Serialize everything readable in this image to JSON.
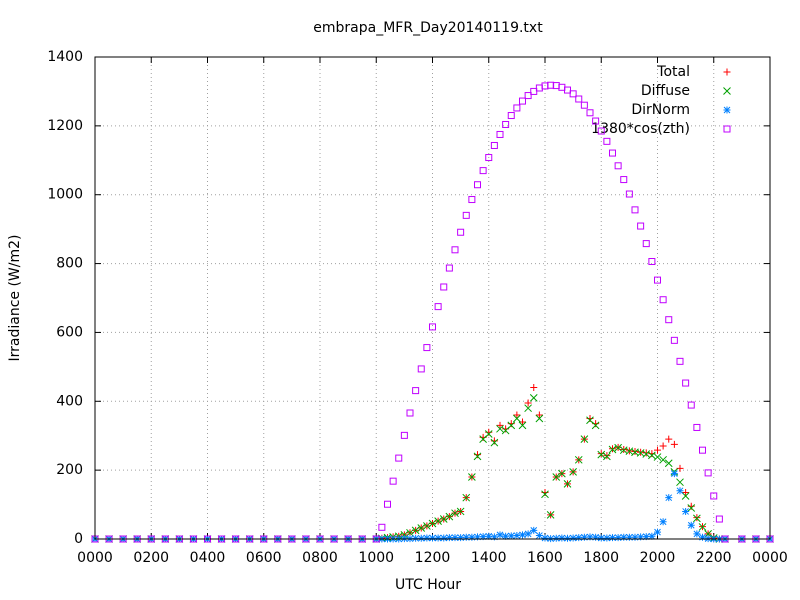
{
  "chart_data": {
    "type": "scatter",
    "title": "embrapa_MFR_Day20140119.txt",
    "x_label": "UTC Hour",
    "y_label": "Irradiance (W/m2)",
    "xlim": [
      0,
      24
    ],
    "ylim": [
      0,
      1400
    ],
    "xticks": [
      {
        "value": 0,
        "label": "0000"
      },
      {
        "value": 2,
        "label": "0200"
      },
      {
        "value": 4,
        "label": "0400"
      },
      {
        "value": 6,
        "label": "0600"
      },
      {
        "value": 8,
        "label": "0800"
      },
      {
        "value": 10,
        "label": "1000"
      },
      {
        "value": 12,
        "label": "1200"
      },
      {
        "value": 14,
        "label": "1400"
      },
      {
        "value": 16,
        "label": "1600"
      },
      {
        "value": 18,
        "label": "1800"
      },
      {
        "value": 20,
        "label": "2000"
      },
      {
        "value": 22,
        "label": "2200"
      },
      {
        "value": 24,
        "label": "0000"
      }
    ],
    "yticks": [
      0,
      200,
      400,
      600,
      800,
      1000,
      1200,
      1400
    ],
    "grid": true,
    "legend": "top right",
    "x": [
      0,
      0.5,
      1,
      1.5,
      2,
      2.5,
      3,
      3.5,
      4,
      4.5,
      5,
      5.5,
      6,
      6.5,
      7,
      7.5,
      8,
      8.5,
      9,
      9.5,
      10,
      10.2,
      10.4,
      10.6,
      10.8,
      11,
      11.2,
      11.4,
      11.6,
      11.8,
      12,
      12.2,
      12.4,
      12.6,
      12.8,
      13,
      13.2,
      13.4,
      13.6,
      13.8,
      14,
      14.2,
      14.4,
      14.6,
      14.8,
      15,
      15.2,
      15.4,
      15.6,
      15.8,
      16,
      16.2,
      16.4,
      16.6,
      16.8,
      17,
      17.2,
      17.4,
      17.6,
      17.8,
      18,
      18.2,
      18.4,
      18.6,
      18.8,
      19,
      19.2,
      19.4,
      19.6,
      19.8,
      20,
      20.2,
      20.4,
      20.6,
      20.8,
      21,
      21.2,
      21.4,
      21.6,
      21.8,
      22,
      22.2,
      22.4,
      23,
      23.5,
      24
    ],
    "series": [
      {
        "name": "Total",
        "color": "#ff0000",
        "marker": "plus",
        "values": [
          0,
          0,
          0,
          0,
          0,
          0,
          0,
          0,
          0,
          0,
          0,
          0,
          0,
          0,
          0,
          0,
          0,
          0,
          0,
          0,
          0,
          2,
          4,
          6,
          8,
          12,
          18,
          25,
          32,
          38,
          45,
          52,
          58,
          65,
          75,
          80,
          120,
          180,
          245,
          295,
          310,
          285,
          330,
          320,
          335,
          360,
          340,
          395,
          440,
          360,
          135,
          70,
          180,
          190,
          160,
          195,
          230,
          290,
          350,
          335,
          248,
          242,
          262,
          266,
          260,
          256,
          254,
          252,
          250,
          248,
          258,
          270,
          290,
          275,
          205,
          135,
          95,
          62,
          36,
          15,
          3,
          0,
          0,
          0,
          0,
          0
        ]
      },
      {
        "name": "Diffuse",
        "color": "#00a000",
        "marker": "cross",
        "values": [
          0,
          0,
          0,
          0,
          0,
          0,
          0,
          0,
          0,
          0,
          0,
          0,
          0,
          0,
          0,
          0,
          0,
          0,
          0,
          0,
          0,
          2,
          4,
          6,
          8,
          12,
          18,
          25,
          32,
          38,
          45,
          52,
          58,
          65,
          75,
          80,
          120,
          180,
          240,
          290,
          305,
          280,
          320,
          315,
          330,
          350,
          330,
          380,
          410,
          350,
          130,
          70,
          180,
          190,
          160,
          195,
          230,
          290,
          345,
          330,
          245,
          240,
          260,
          265,
          258,
          255,
          252,
          250,
          247,
          243,
          238,
          230,
          220,
          195,
          165,
          125,
          90,
          60,
          35,
          15,
          3,
          0,
          0,
          0,
          0,
          0
        ]
      },
      {
        "name": "DirNorm",
        "color": "#0080ff",
        "marker": "star",
        "values": [
          0,
          0,
          0,
          0,
          0,
          0,
          0,
          0,
          0,
          0,
          0,
          0,
          0,
          0,
          0,
          0,
          0,
          0,
          0,
          0,
          0,
          0,
          0,
          0,
          0,
          1,
          1,
          2,
          2,
          3,
          3,
          3,
          3,
          4,
          4,
          4,
          5,
          5,
          6,
          7,
          8,
          6,
          12,
          8,
          9,
          10,
          12,
          15,
          25,
          10,
          3,
          1,
          2,
          3,
          2,
          3,
          4,
          5,
          6,
          5,
          3,
          3,
          4,
          4,
          5,
          5,
          5,
          6,
          7,
          8,
          20,
          50,
          120,
          190,
          140,
          80,
          40,
          15,
          5,
          1,
          0,
          0,
          0,
          0,
          0,
          0
        ]
      },
      {
        "name": "1380*cos(zth)",
        "color": "#c000ff",
        "marker": "square",
        "values": [
          0,
          0,
          0,
          0,
          0,
          0,
          0,
          0,
          0,
          0,
          0,
          0,
          0,
          0,
          0,
          0,
          0,
          0,
          0,
          0,
          0,
          34,
          101,
          168,
          235,
          301,
          366,
          431,
          494,
          556,
          616,
          675,
          732,
          787,
          840,
          891,
          940,
          986,
          1029,
          1070,
          1108,
          1143,
          1175,
          1204,
          1230,
          1252,
          1272,
          1288,
          1300,
          1310,
          1316,
          1318,
          1317,
          1312,
          1304,
          1293,
          1278,
          1260,
          1238,
          1214,
          1185,
          1155,
          1121,
          1084,
          1044,
          1002,
          956,
          909,
          858,
          806,
          752,
          695,
          637,
          577,
          516,
          453,
          389,
          324,
          258,
          192,
          125,
          58,
          0,
          0,
          0,
          0
        ]
      }
    ]
  }
}
